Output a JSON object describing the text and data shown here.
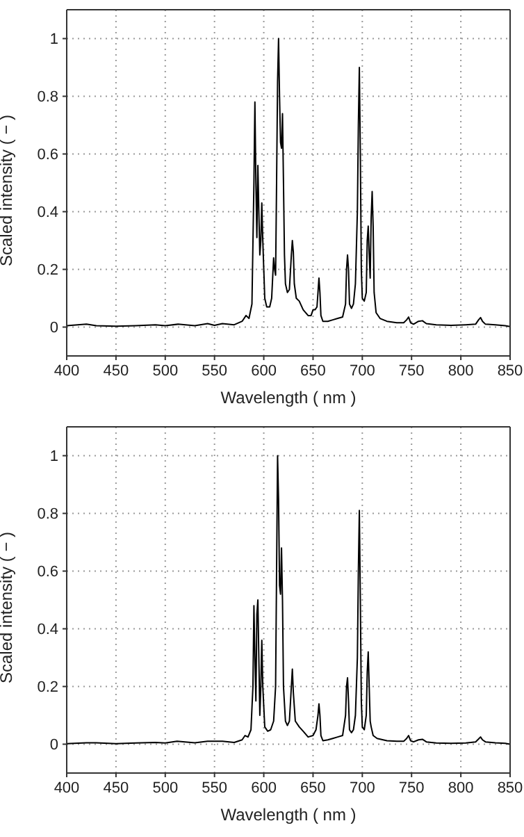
{
  "chart_data": [
    {
      "type": "line",
      "xlabel": "Wavelength ( nm )",
      "ylabel": "Scaled intensity ( − )",
      "xlim": [
        400,
        850
      ],
      "ylim": [
        -0.1,
        1.1
      ],
      "xticks": [
        400,
        450,
        500,
        550,
        600,
        650,
        700,
        750,
        800,
        850
      ],
      "yticks": [
        0,
        0.2,
        0.4,
        0.6,
        0.8,
        1
      ],
      "grid": true,
      "x": [
        400,
        420,
        430,
        450,
        470,
        490,
        500,
        513,
        530,
        543,
        550,
        558,
        570,
        578,
        582,
        585,
        588,
        590,
        591,
        592,
        593,
        594,
        595,
        596,
        597,
        598,
        599,
        601,
        603,
        606,
        608,
        610,
        611,
        612,
        613,
        614,
        615,
        616,
        617,
        618,
        619,
        620,
        621,
        622,
        624,
        626,
        628,
        629,
        630,
        631,
        633,
        636,
        640,
        645,
        648,
        650,
        652,
        654,
        655,
        656,
        657,
        658,
        660,
        665,
        670,
        675,
        680,
        683,
        684,
        685,
        686,
        687,
        689,
        691,
        693,
        695,
        696,
        697,
        698,
        699,
        700,
        702,
        704,
        705,
        706,
        707,
        708,
        709,
        710,
        711,
        712,
        714,
        718,
        725,
        735,
        742,
        745,
        747,
        749,
        752,
        757,
        761,
        765,
        775,
        790,
        805,
        815,
        818,
        820,
        822,
        825,
        835,
        845,
        850
      ],
      "series": [
        {
          "color": "#000000",
          "values": [
            0.005,
            0.01,
            0.005,
            0.003,
            0.005,
            0.008,
            0.005,
            0.01,
            0.005,
            0.012,
            0.006,
            0.012,
            0.008,
            0.02,
            0.04,
            0.03,
            0.08,
            0.5,
            0.78,
            0.5,
            0.31,
            0.56,
            0.4,
            0.25,
            0.3,
            0.43,
            0.3,
            0.1,
            0.07,
            0.07,
            0.1,
            0.24,
            0.2,
            0.18,
            0.5,
            0.85,
            1.0,
            0.8,
            0.64,
            0.62,
            0.74,
            0.5,
            0.25,
            0.15,
            0.12,
            0.13,
            0.25,
            0.3,
            0.26,
            0.15,
            0.1,
            0.09,
            0.06,
            0.04,
            0.04,
            0.06,
            0.06,
            0.07,
            0.12,
            0.17,
            0.12,
            0.04,
            0.02,
            0.02,
            0.025,
            0.03,
            0.035,
            0.08,
            0.2,
            0.25,
            0.2,
            0.08,
            0.065,
            0.08,
            0.15,
            0.4,
            0.7,
            0.9,
            0.6,
            0.2,
            0.1,
            0.09,
            0.12,
            0.3,
            0.35,
            0.25,
            0.17,
            0.38,
            0.47,
            0.35,
            0.12,
            0.05,
            0.03,
            0.02,
            0.015,
            0.015,
            0.025,
            0.035,
            0.015,
            0.01,
            0.02,
            0.022,
            0.012,
            0.008,
            0.006,
            0.008,
            0.01,
            0.025,
            0.033,
            0.02,
            0.01,
            0.008,
            0.005,
            0.002
          ]
        }
      ]
    },
    {
      "type": "line",
      "xlabel": "Wavelength ( nm )",
      "ylabel": "Scaled intensity ( − )",
      "xlim": [
        400,
        850
      ],
      "ylim": [
        -0.1,
        1.1
      ],
      "xticks": [
        400,
        450,
        500,
        550,
        600,
        650,
        700,
        750,
        800,
        850
      ],
      "yticks": [
        0,
        0.2,
        0.4,
        0.6,
        0.8,
        1
      ],
      "grid": true,
      "x": [
        400,
        420,
        430,
        450,
        470,
        490,
        500,
        512,
        530,
        543,
        558,
        570,
        578,
        581,
        584,
        587,
        589,
        590,
        591,
        592,
        593,
        594,
        595,
        596,
        597,
        598,
        599,
        601,
        604,
        607,
        610,
        612,
        613,
        614,
        615,
        616,
        617,
        618,
        619,
        620,
        622,
        624,
        626,
        628,
        629,
        630,
        632,
        636,
        640,
        645,
        650,
        653,
        655,
        656,
        657,
        658,
        660,
        665,
        670,
        675,
        680,
        683,
        684,
        685,
        686,
        687,
        689,
        691,
        693,
        695,
        696,
        697,
        698,
        699,
        700,
        702,
        704,
        705,
        706,
        707,
        708,
        709,
        711,
        715,
        725,
        735,
        742,
        745,
        747,
        749,
        752,
        757,
        761,
        765,
        775,
        790,
        805,
        815,
        818,
        820,
        822,
        825,
        835,
        845,
        850
      ],
      "series": [
        {
          "color": "#000000",
          "values": [
            0.002,
            0.005,
            0.005,
            0.002,
            0.004,
            0.006,
            0.004,
            0.01,
            0.005,
            0.01,
            0.01,
            0.006,
            0.015,
            0.03,
            0.025,
            0.05,
            0.2,
            0.48,
            0.3,
            0.15,
            0.45,
            0.5,
            0.3,
            0.1,
            0.2,
            0.36,
            0.2,
            0.06,
            0.045,
            0.05,
            0.08,
            0.2,
            0.6,
            1.0,
            0.85,
            0.55,
            0.52,
            0.68,
            0.5,
            0.2,
            0.08,
            0.065,
            0.08,
            0.2,
            0.26,
            0.18,
            0.08,
            0.06,
            0.045,
            0.025,
            0.03,
            0.05,
            0.1,
            0.14,
            0.1,
            0.03,
            0.012,
            0.015,
            0.02,
            0.025,
            0.03,
            0.1,
            0.2,
            0.23,
            0.15,
            0.05,
            0.04,
            0.05,
            0.1,
            0.3,
            0.6,
            0.81,
            0.5,
            0.15,
            0.06,
            0.05,
            0.1,
            0.25,
            0.32,
            0.2,
            0.08,
            0.06,
            0.03,
            0.02,
            0.012,
            0.01,
            0.01,
            0.02,
            0.03,
            0.012,
            0.008,
            0.015,
            0.017,
            0.008,
            0.004,
            0.003,
            0.004,
            0.008,
            0.018,
            0.025,
            0.015,
            0.008,
            0.005,
            0.003,
            0.0
          ]
        }
      ]
    }
  ]
}
